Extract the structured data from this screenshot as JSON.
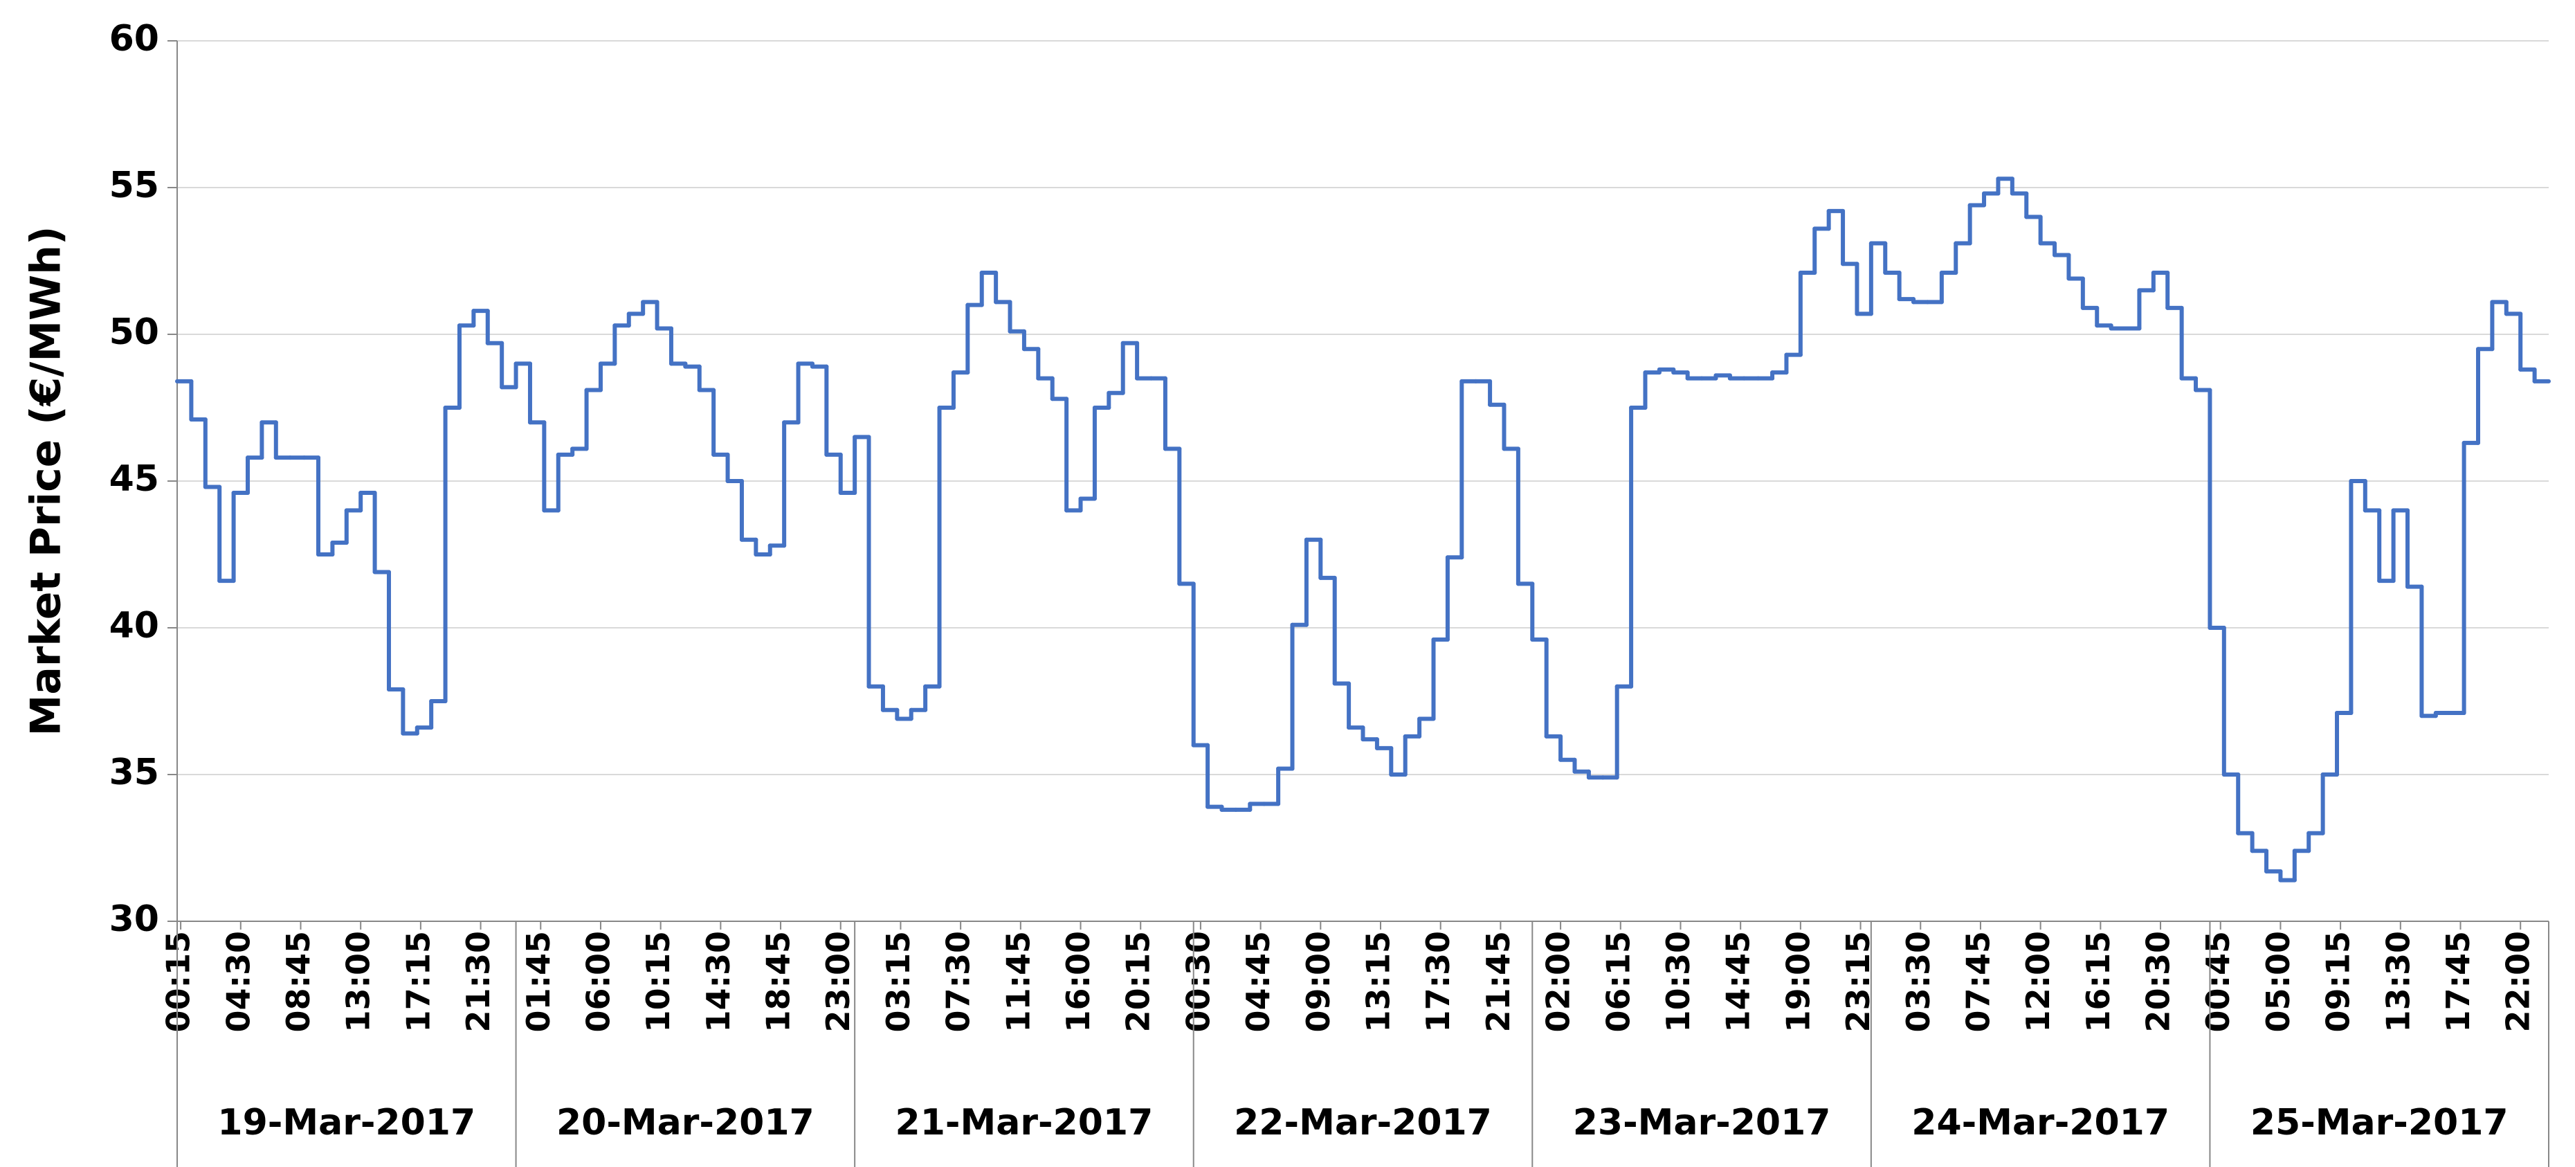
{
  "chart_data": {
    "type": "line",
    "y_label": "Market Price (€/MWh)",
    "color": "#4472c4",
    "ylim": [
      30,
      60
    ],
    "yticks": [
      30,
      35,
      40,
      45,
      50,
      55,
      60
    ],
    "grid": true,
    "xlim": [
      0,
      168
    ],
    "xticks": [
      {
        "value": 0.25,
        "label": "00:15"
      },
      {
        "value": 4.5,
        "label": "04:30"
      },
      {
        "value": 8.75,
        "label": "08:45"
      },
      {
        "value": 13,
        "label": "13:00"
      },
      {
        "value": 17.25,
        "label": "17:15"
      },
      {
        "value": 21.5,
        "label": "21:30"
      },
      {
        "value": 25.75,
        "label": "01:45"
      },
      {
        "value": 30,
        "label": "06:00"
      },
      {
        "value": 34.25,
        "label": "10:15"
      },
      {
        "value": 38.5,
        "label": "14:30"
      },
      {
        "value": 42.75,
        "label": "18:45"
      },
      {
        "value": 47,
        "label": "23:00"
      },
      {
        "value": 51.25,
        "label": "03:15"
      },
      {
        "value": 55.5,
        "label": "07:30"
      },
      {
        "value": 59.75,
        "label": "11:45"
      },
      {
        "value": 64,
        "label": "16:00"
      },
      {
        "value": 68.25,
        "label": "20:15"
      },
      {
        "value": 72.5,
        "label": "00:30"
      },
      {
        "value": 76.75,
        "label": "04:45"
      },
      {
        "value": 81,
        "label": "09:00"
      },
      {
        "value": 85.25,
        "label": "13:15"
      },
      {
        "value": 89.5,
        "label": "17:30"
      },
      {
        "value": 93.75,
        "label": "21:45"
      },
      {
        "value": 98,
        "label": "02:00"
      },
      {
        "value": 102.25,
        "label": "06:15"
      },
      {
        "value": 106.5,
        "label": "10:30"
      },
      {
        "value": 110.75,
        "label": "14:45"
      },
      {
        "value": 115,
        "label": "19:00"
      },
      {
        "value": 119.25,
        "label": "23:15"
      },
      {
        "value": 123.5,
        "label": "03:30"
      },
      {
        "value": 127.75,
        "label": "07:45"
      },
      {
        "value": 132,
        "label": "12:00"
      },
      {
        "value": 136.25,
        "label": "16:15"
      },
      {
        "value": 140.5,
        "label": "20:30"
      },
      {
        "value": 144.75,
        "label": "00:45"
      },
      {
        "value": 149,
        "label": "05:00"
      },
      {
        "value": 153.25,
        "label": "09:15"
      },
      {
        "value": 157.5,
        "label": "13:30"
      },
      {
        "value": 161.75,
        "label": "17:45"
      },
      {
        "value": 166,
        "label": "22:00"
      }
    ],
    "day_labels": [
      "19-Mar-2017",
      "20-Mar-2017",
      "21-Mar-2017",
      "22-Mar-2017",
      "23-Mar-2017",
      "24-Mar-2017",
      "25-Mar-2017"
    ],
    "values": [
      48.4,
      47.1,
      44.8,
      41.6,
      44.6,
      45.8,
      47.0,
      45.8,
      45.8,
      45.8,
      42.5,
      42.9,
      44.0,
      44.6,
      41.9,
      37.9,
      36.4,
      36.6,
      37.5,
      47.5,
      50.3,
      50.8,
      49.7,
      48.2,
      49.0,
      47.0,
      44.0,
      45.9,
      46.1,
      48.1,
      49.0,
      50.3,
      50.7,
      51.1,
      50.2,
      49.0,
      48.9,
      48.1,
      45.9,
      45.0,
      43.0,
      42.5,
      42.8,
      47.0,
      49.0,
      48.9,
      45.9,
      44.6,
      46.5,
      38.0,
      37.2,
      36.9,
      37.2,
      38.0,
      47.5,
      48.7,
      51.0,
      52.1,
      51.1,
      50.1,
      49.5,
      48.5,
      47.8,
      44.0,
      44.4,
      47.5,
      48.0,
      49.7,
      48.5,
      48.5,
      46.1,
      41.5,
      36.0,
      33.9,
      33.8,
      33.8,
      34.0,
      34.0,
      35.2,
      40.1,
      43.0,
      41.7,
      38.1,
      36.6,
      36.2,
      35.9,
      35.0,
      36.3,
      36.9,
      39.6,
      42.4,
      48.4,
      48.4,
      47.6,
      46.1,
      41.5,
      39.6,
      36.3,
      35.5,
      35.1,
      34.9,
      34.9,
      38.0,
      47.5,
      48.7,
      48.8,
      48.7,
      48.5,
      48.5,
      48.6,
      48.5,
      48.5,
      48.5,
      48.7,
      49.3,
      52.1,
      53.6,
      54.2,
      52.4,
      50.7,
      53.1,
      52.1,
      51.2,
      51.1,
      51.1,
      52.1,
      53.1,
      54.4,
      54.8,
      55.3,
      54.8,
      54.0,
      53.1,
      52.7,
      51.9,
      50.9,
      50.3,
      50.2,
      50.2,
      51.5,
      52.1,
      50.9,
      48.5,
      48.1,
      40.0,
      35.0,
      33.0,
      32.4,
      31.7,
      31.4,
      32.4,
      33.0,
      35.0,
      37.1,
      45.0,
      44.0,
      41.6,
      44.0,
      41.4,
      37.0,
      37.1,
      37.1,
      46.3,
      49.5,
      51.1,
      50.7,
      48.8,
      48.4
    ]
  }
}
